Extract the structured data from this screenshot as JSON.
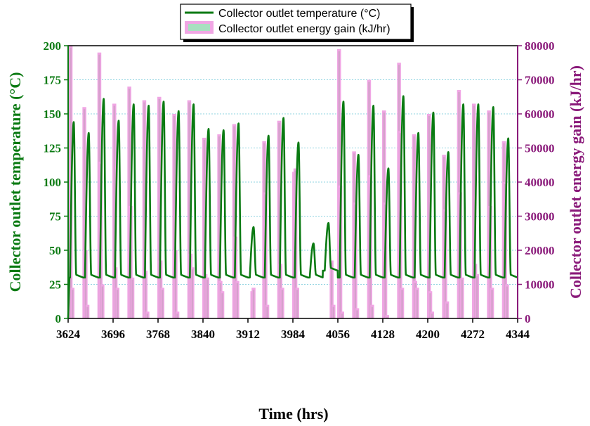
{
  "chart_data": {
    "type": "line+bar",
    "xlabel": "Time (hrs)",
    "ylabel_left": "Collector outlet temperature (°C)",
    "ylabel_right": "Collector outlet energy gain (kJ/hr)",
    "xlim": [
      3624,
      4344
    ],
    "ylim_left": [
      0,
      200
    ],
    "ylim_right": [
      0,
      80000
    ],
    "x_ticks": [
      3624,
      3696,
      3768,
      3840,
      3912,
      3984,
      4056,
      4128,
      4200,
      4272,
      4344
    ],
    "y_left_ticks": [
      0,
      25,
      50,
      75,
      100,
      125,
      150,
      175,
      200
    ],
    "y_right_ticks": [
      0,
      10000,
      20000,
      30000,
      40000,
      50000,
      60000,
      70000,
      80000
    ],
    "grid": "horizontal-dotted",
    "legend_position": "top-center",
    "colors": {
      "temperature": "#0a7a12",
      "energy_bar": "#f0a6e4",
      "energy_bar_inner": "#c9a0c0",
      "right_axis": "#8a1a7a",
      "legend_swatch": "#a8e0c0",
      "grid": "#8fd3e0"
    },
    "series": [
      {
        "name": "Collector outlet temperature (°C)",
        "kind": "line",
        "daily_peaks": [
          144,
          136,
          161,
          145,
          157,
          156,
          159,
          152,
          157,
          139,
          138,
          143,
          67,
          134,
          147,
          129,
          55,
          70,
          159,
          120,
          156,
          110,
          163,
          136,
          151,
          122,
          157,
          157,
          155,
          132
        ],
        "night_base": [
          30,
          30,
          30,
          30,
          30,
          30,
          30,
          30,
          30,
          30,
          30,
          30,
          30,
          30,
          30,
          30,
          30,
          35,
          30,
          30,
          30,
          30,
          30,
          30,
          30,
          30,
          30,
          30,
          30,
          30
        ]
      },
      {
        "name": "Collector outlet energy gain (kJ/hr)",
        "kind": "bar",
        "bars": [
          [
            3626,
            78000
          ],
          [
            3628,
            80000
          ],
          [
            3631,
            9000
          ],
          [
            3650,
            62000
          ],
          [
            3652,
            20000
          ],
          [
            3655,
            4000
          ],
          [
            3674,
            78000
          ],
          [
            3676,
            46000
          ],
          [
            3679,
            10000
          ],
          [
            3698,
            63000
          ],
          [
            3700,
            15000
          ],
          [
            3703,
            9000
          ],
          [
            3722,
            68000
          ],
          [
            3724,
            33000
          ],
          [
            3727,
            12000
          ],
          [
            3746,
            64000
          ],
          [
            3748,
            14000
          ],
          [
            3751,
            2000
          ],
          [
            3770,
            65000
          ],
          [
            3772,
            17000
          ],
          [
            3775,
            9000
          ],
          [
            3794,
            60000
          ],
          [
            3796,
            20000
          ],
          [
            3799,
            2000
          ],
          [
            3818,
            64000
          ],
          [
            3820,
            19000
          ],
          [
            3823,
            15000
          ],
          [
            3842,
            53000
          ],
          [
            3844,
            13000
          ],
          [
            3847,
            12000
          ],
          [
            3866,
            54000
          ],
          [
            3868,
            11000
          ],
          [
            3871,
            8000
          ],
          [
            3890,
            57000
          ],
          [
            3892,
            24000
          ],
          [
            3895,
            11000
          ],
          [
            3919,
            8000
          ],
          [
            3921,
            9000
          ],
          [
            3938,
            52000
          ],
          [
            3940,
            37000
          ],
          [
            3943,
            4000
          ],
          [
            3962,
            58000
          ],
          [
            3964,
            16000
          ],
          [
            3967,
            9000
          ],
          [
            3986,
            43000
          ],
          [
            3988,
            44000
          ],
          [
            3991,
            9000
          ],
          [
            4046,
            17000
          ],
          [
            4049,
            4000
          ],
          [
            4058,
            79000
          ],
          [
            4060,
            39000
          ],
          [
            4063,
            2000
          ],
          [
            4082,
            49000
          ],
          [
            4084,
            34000
          ],
          [
            4087,
            3000
          ],
          [
            4106,
            70000
          ],
          [
            4108,
            42000
          ],
          [
            4111,
            4000
          ],
          [
            4130,
            61000
          ],
          [
            4132,
            34000
          ],
          [
            4135,
            1000
          ],
          [
            4154,
            75000
          ],
          [
            4156,
            55000
          ],
          [
            4159,
            9000
          ],
          [
            4178,
            54000
          ],
          [
            4180,
            11000
          ],
          [
            4183,
            9000
          ],
          [
            4202,
            60000
          ],
          [
            4204,
            8000
          ],
          [
            4207,
            2000
          ],
          [
            4226,
            48000
          ],
          [
            4228,
            32000
          ],
          [
            4231,
            5000
          ],
          [
            4250,
            67000
          ],
          [
            4252,
            37000
          ],
          [
            4255,
            12000
          ],
          [
            4274,
            63000
          ],
          [
            4276,
            16000
          ],
          [
            4279,
            13000
          ],
          [
            4298,
            61000
          ],
          [
            4300,
            33000
          ],
          [
            4303,
            9000
          ],
          [
            4322,
            52000
          ],
          [
            4324,
            40000
          ],
          [
            4327,
            10000
          ]
        ]
      }
    ]
  }
}
